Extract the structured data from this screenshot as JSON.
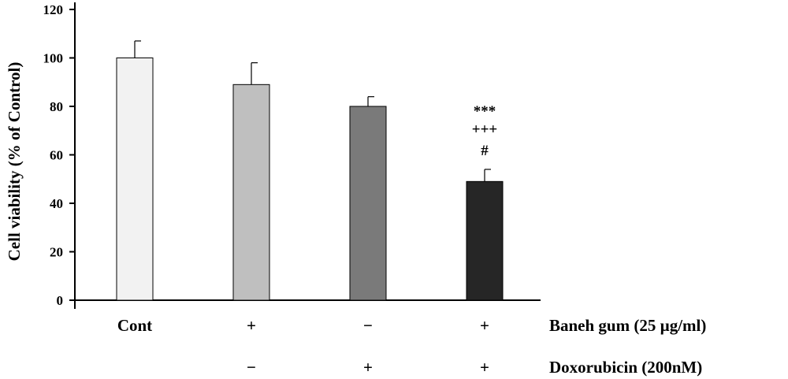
{
  "chart_data": {
    "type": "bar",
    "title": "",
    "xlabel": "",
    "ylabel": "Cell viability (% of Control)",
    "ylim": [
      0,
      120
    ],
    "yticks": [
      "0",
      "20",
      "40",
      "60",
      "80",
      "100",
      "120"
    ],
    "grid": false,
    "categories": [
      "Cont",
      "Baneh gum",
      "Doxorubicin",
      "Baneh gum + Doxorubicin"
    ],
    "values": [
      100,
      89,
      80,
      49
    ],
    "errors": [
      7,
      9,
      4,
      5
    ],
    "colors": [
      "#f2f2f2",
      "#bfbfbf",
      "#7a7a7a",
      "#262626"
    ],
    "significance": [
      "***",
      "+++",
      "#"
    ],
    "treatment_rows": [
      {
        "label": "Baneh gum (25 µg/ml)",
        "marks": [
          "Cont",
          "+",
          "−",
          "+"
        ]
      },
      {
        "label": "Doxorubicin (200nM)",
        "marks": [
          "",
          "−",
          "+",
          "+"
        ]
      }
    ]
  }
}
